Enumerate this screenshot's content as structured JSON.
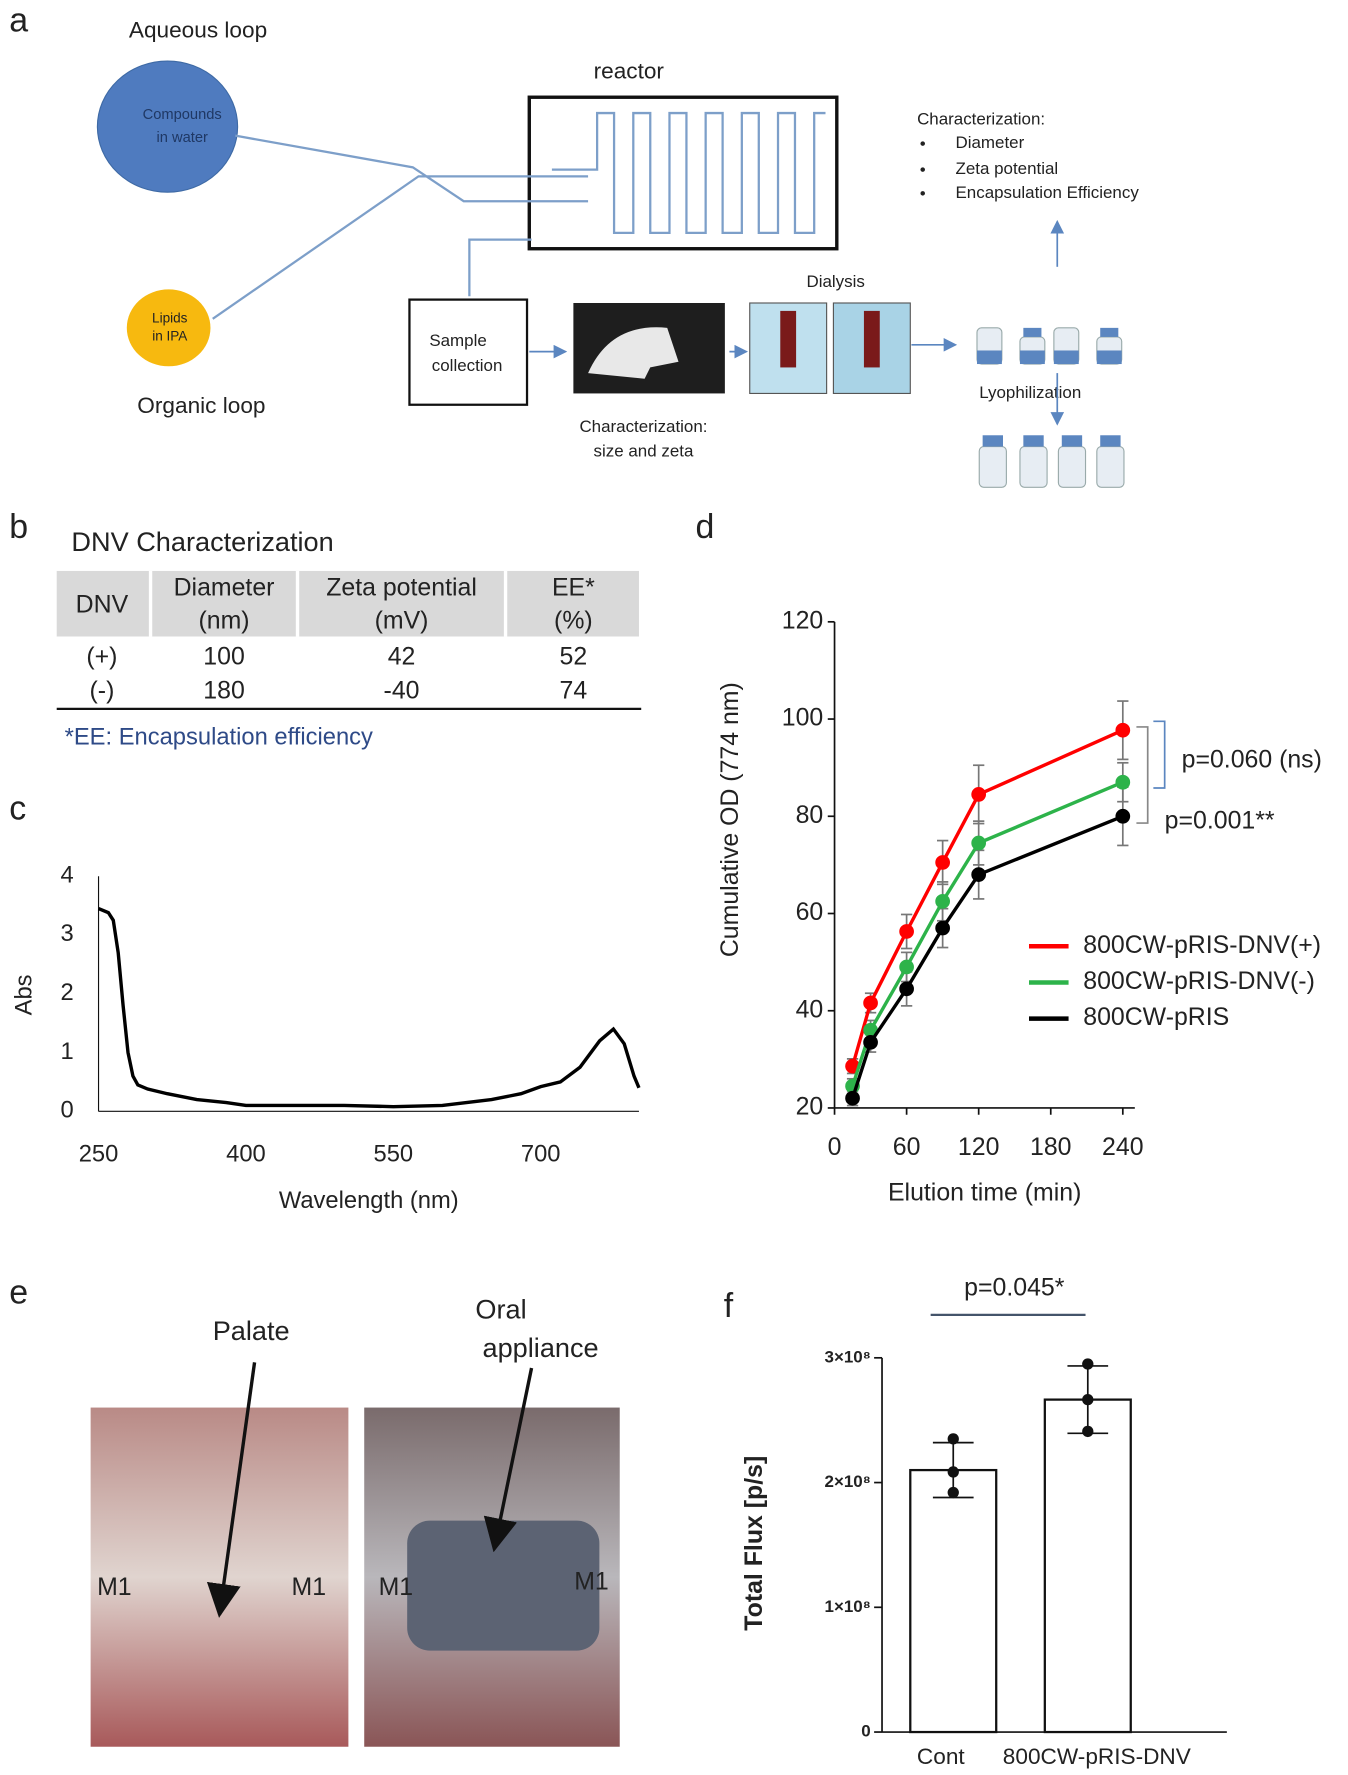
{
  "panel_labels": [
    "a",
    "b",
    "c",
    "d",
    "e",
    "f"
  ],
  "diagram": {
    "aqueous_loop": "Aqueous loop",
    "aqueous_content": [
      "Compounds",
      "in water"
    ],
    "organic_content": [
      "Lipids",
      "in IPA"
    ],
    "organic_loop": "Organic loop",
    "reactor": "reactor",
    "sample_collection": [
      "Sample",
      "collection"
    ],
    "inline_characterization": [
      "Characterization:",
      "size and zeta"
    ],
    "dialysis": "Dialysis",
    "lyophilization": "Lyophilization",
    "characterization": {
      "title": "Characterization:",
      "items": [
        "Diameter",
        "Zeta potential",
        "Encapsulation Efficiency"
      ]
    }
  },
  "table": {
    "title": "DNV Characterization",
    "header": [
      [
        "DNV"
      ],
      [
        "Diameter",
        "(nm)"
      ],
      [
        "Zeta potential",
        "(mV)"
      ],
      [
        "EE*",
        "(%)"
      ]
    ],
    "rows": [
      [
        "(+)",
        "100",
        "42",
        "52"
      ],
      [
        "(-)",
        "180",
        "-40",
        "74"
      ]
    ],
    "footnote": "*EE: Encapsulation efficiency"
  },
  "photo": {
    "palate": "Palate",
    "oral_appliance": [
      "Oral",
      "appliance"
    ],
    "molar_labels": [
      "M1",
      "M1",
      "M1",
      "M1"
    ]
  },
  "chart_data": [
    {
      "type": "line",
      "xlabel": "Wavelength (nm)",
      "ylabel": "Abs",
      "color": "#000000",
      "x": [
        250,
        260,
        265,
        270,
        275,
        280,
        285,
        290,
        300,
        320,
        350,
        380,
        400,
        450,
        500,
        550,
        600,
        650,
        680,
        700,
        720,
        740,
        760,
        774,
        785,
        795,
        800
      ],
      "values": [
        3.45,
        3.38,
        3.25,
        2.7,
        1.8,
        1.0,
        0.6,
        0.45,
        0.38,
        0.3,
        0.2,
        0.15,
        0.1,
        0.1,
        0.1,
        0.08,
        0.1,
        0.2,
        0.3,
        0.42,
        0.5,
        0.75,
        1.2,
        1.4,
        1.15,
        0.6,
        0.4
      ],
      "xlim": [
        250,
        800
      ],
      "xticks": [
        250,
        400,
        550,
        700
      ],
      "ylim": [
        0,
        4
      ],
      "yticks": [
        0,
        1,
        2,
        3,
        4
      ]
    },
    {
      "type": "line",
      "xlabel": "Elution time (min)",
      "ylabel": "Cumulative OD (774 nm)",
      "x": [
        15,
        30,
        60,
        90,
        120,
        240
      ],
      "xlim": [
        0,
        250
      ],
      "xticks": [
        0,
        60,
        120,
        180,
        240
      ],
      "ylim": [
        20,
        120
      ],
      "yticks": [
        20,
        40,
        60,
        80,
        100,
        120
      ],
      "series": [
        {
          "name": "800CW-pRIS-DNV(+)",
          "color": "#ff0000",
          "values": [
            28.6,
            41.6,
            56.3,
            70.5,
            84.5,
            97.7
          ],
          "errors": [
            1.5,
            2,
            3.5,
            4.5,
            6,
            6
          ]
        },
        {
          "name": "800CW-pRIS-DNV(-)",
          "color": "#2db34a",
          "values": [
            24.5,
            36,
            49,
            62.5,
            74.5,
            87
          ],
          "errors": [
            1.5,
            2,
            3,
            4,
            4.5,
            4
          ]
        },
        {
          "name": "800CW-pRIS",
          "color": "#000000",
          "values": [
            22,
            33.5,
            44.5,
            57,
            68,
            80
          ],
          "errors": [
            1.5,
            2,
            3.5,
            4,
            5,
            6
          ]
        }
      ],
      "annotations": [
        "p=0.060 (ns)",
        "p=0.001**"
      ]
    },
    {
      "type": "bar",
      "ylabel": "Total Flux [p/s]",
      "categories": [
        "Cont",
        "800CW-pRIS-DNV"
      ],
      "color": "#ffffff",
      "values": [
        210000000,
        266500000
      ],
      "errors": [
        22000000,
        27000000
      ],
      "points": [
        [
          235000000,
          208500000,
          192000000
        ],
        [
          295000000,
          266500000,
          241000000
        ]
      ],
      "ylim": [
        0,
        300000000
      ],
      "yticks": [
        0,
        {
          "value": 100000000,
          "label": "1×10⁸"
        },
        {
          "value": 200000000,
          "label": "2×10⁸"
        },
        {
          "value": 300000000,
          "label": "3×10⁸"
        }
      ],
      "annotations": [
        "p=0.045*"
      ]
    }
  ]
}
